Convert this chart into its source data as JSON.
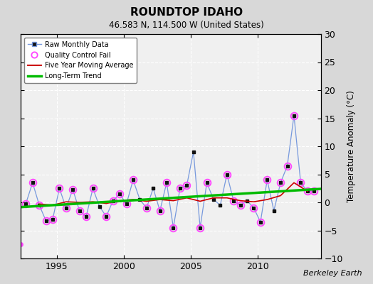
{
  "title": "ROUNDTOP IDAHO",
  "subtitle": "46.583 N, 114.500 W (United States)",
  "ylabel_right": "Temperature Anomaly (°C)",
  "credit": "Berkeley Earth",
  "xlim": [
    1992.3,
    2014.7
  ],
  "ylim": [
    -10,
    30
  ],
  "yticks": [
    -10,
    -5,
    0,
    5,
    10,
    15,
    20,
    25,
    30
  ],
  "xticks": [
    1995,
    2000,
    2005,
    2010
  ],
  "bg_color": "#d8d8d8",
  "plot_bg_color": "#f0f0f0",
  "raw_line_color": "#7799dd",
  "raw_marker_color": "#111111",
  "qc_color": "#ff44ff",
  "moving_avg_color": "#cc0000",
  "trend_color": "#00bb00",
  "raw_x": [
    1992.7,
    1993.2,
    1993.7,
    1994.2,
    1994.7,
    1995.2,
    1995.7,
    1996.2,
    1996.7,
    1997.2,
    1997.7,
    1998.2,
    1998.7,
    1999.2,
    1999.7,
    2000.2,
    2000.7,
    2001.2,
    2001.7,
    2002.2,
    2002.7,
    2003.2,
    2003.7,
    2004.2,
    2004.7,
    2005.2,
    2005.7,
    2006.2,
    2006.7,
    2007.2,
    2007.7,
    2008.2,
    2008.7,
    2009.2,
    2009.7,
    2010.2,
    2010.7,
    2011.2,
    2011.7,
    2012.2,
    2012.7,
    2013.2,
    2013.7,
    2014.2
  ],
  "raw_y": [
    -0.2,
    3.5,
    -0.5,
    -3.3,
    -3.0,
    2.5,
    -1.0,
    2.3,
    -1.5,
    -2.5,
    2.5,
    -0.8,
    -2.5,
    0.3,
    1.5,
    -0.3,
    4.0,
    0.5,
    -1.0,
    2.5,
    -1.5,
    3.5,
    -4.5,
    2.5,
    3.0,
    9.0,
    -4.5,
    3.5,
    0.5,
    -0.5,
    5.0,
    0.2,
    -0.5,
    0.3,
    -1.0,
    -3.5,
    4.0,
    -1.5,
    3.5,
    6.5,
    15.5,
    3.5,
    2.0,
    2.0
  ],
  "qc_x": [
    1992.7,
    1993.2,
    1993.7,
    1994.2,
    1994.7,
    1995.2,
    1995.7,
    1996.2,
    1996.7,
    1997.2,
    1997.7,
    1998.7,
    1999.2,
    1999.7,
    2000.2,
    2000.7,
    2001.7,
    2002.7,
    2003.2,
    2003.7,
    2004.2,
    2004.7,
    2005.7,
    2006.2,
    2007.7,
    2008.2,
    2008.7,
    2009.7,
    2010.2,
    2010.7,
    2011.7,
    2012.2,
    2012.7,
    2013.2,
    2013.7,
    2014.2
  ],
  "qc_y": [
    -0.2,
    3.5,
    -0.5,
    -3.3,
    -3.0,
    2.5,
    -1.0,
    2.3,
    -1.5,
    -2.5,
    2.5,
    -2.5,
    0.3,
    1.5,
    -0.3,
    4.0,
    -1.0,
    -1.5,
    3.5,
    -4.5,
    2.5,
    3.0,
    -4.5,
    3.5,
    5.0,
    0.2,
    -0.5,
    -1.0,
    -3.5,
    4.0,
    3.5,
    6.5,
    15.5,
    3.5,
    2.0,
    2.0
  ],
  "qc_isolated_x": [
    1992.3
  ],
  "qc_isolated_y": [
    -7.5
  ],
  "trend_x": [
    1992.3,
    2014.7
  ],
  "trend_y": [
    -0.85,
    2.4
  ],
  "moving_avg_x": [
    1993.7,
    1994.7,
    1995.7,
    1996.7,
    1997.7,
    1998.7,
    1999.7,
    2000.7,
    2001.7,
    2002.7,
    2003.7,
    2004.7,
    2005.7,
    2006.7,
    2007.7,
    2008.7,
    2009.7,
    2010.7,
    2011.7,
    2012.7,
    2013.7
  ],
  "moving_avg_y": [
    -0.3,
    -0.5,
    0.1,
    0.0,
    0.1,
    -0.2,
    0.3,
    0.5,
    0.2,
    0.5,
    0.3,
    0.8,
    0.2,
    0.8,
    0.8,
    0.3,
    0.1,
    0.5,
    1.2,
    3.5,
    2.0
  ]
}
